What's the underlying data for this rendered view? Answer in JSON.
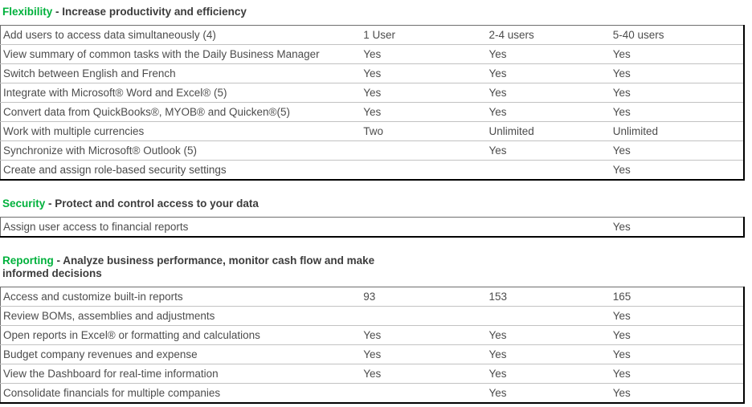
{
  "colors": {
    "section_green": "#00b13c",
    "heading_text": "#3c3c3c",
    "cell_text": "#4c4c4c",
    "row_divider": "#c2c2c2",
    "table_border": "#000000",
    "page_background": "#ffffff"
  },
  "sections": [
    {
      "name": "Flexibility",
      "tagline": " - Increase productivity and efficiency",
      "rows": [
        {
          "feature": "Add users to access data simultaneously (4)",
          "values": [
            "1 User",
            "2-4 users",
            "5-40 users"
          ]
        },
        {
          "feature": "View summary of common tasks with the Daily Business Manager",
          "values": [
            "Yes",
            "Yes",
            "Yes"
          ]
        },
        {
          "feature": "Switch between English and French",
          "values": [
            "Yes",
            "Yes",
            "Yes"
          ]
        },
        {
          "feature": "Integrate with Microsoft® Word and Excel® (5)",
          "values": [
            "Yes",
            "Yes",
            "Yes"
          ]
        },
        {
          "feature": "Convert data from QuickBooks®, MYOB® and Quicken®(5)",
          "values": [
            "Yes",
            "Yes",
            "Yes"
          ]
        },
        {
          "feature": "Work with multiple currencies",
          "values": [
            "Two",
            "Unlimited",
            "Unlimited"
          ]
        },
        {
          "feature": "Synchronize with Microsoft® Outlook (5)",
          "values": [
            "",
            "Yes",
            "Yes"
          ]
        },
        {
          "feature": "Create and assign role-based security settings",
          "values": [
            "",
            "",
            "Yes"
          ]
        }
      ]
    },
    {
      "name": "Security",
      "tagline": " - Protect and control access to your data",
      "rows": [
        {
          "feature": "Assign user access to financial reports",
          "values": [
            "",
            "",
            "Yes"
          ]
        }
      ]
    },
    {
      "name": "Reporting",
      "tagline": " - Analyze business performance, monitor cash flow and make informed decisions",
      "rows": [
        {
          "feature": "Access and customize built-in reports",
          "values": [
            "93",
            "153",
            "165"
          ]
        },
        {
          "feature": "Review BOMs, assemblies and adjustments",
          "values": [
            "",
            "",
            "Yes"
          ]
        },
        {
          "feature": "Open reports in Excel® or formatting and calculations",
          "values": [
            "Yes",
            "Yes",
            "Yes"
          ]
        },
        {
          "feature": "Budget company revenues and expense",
          "values": [
            "Yes",
            "Yes",
            "Yes"
          ]
        },
        {
          "feature": "View the Dashboard for real-time information",
          "values": [
            "Yes",
            "Yes",
            "Yes"
          ]
        },
        {
          "feature": "Consolidate financials for multiple companies",
          "values": [
            "",
            "Yes",
            "Yes"
          ]
        }
      ]
    }
  ]
}
